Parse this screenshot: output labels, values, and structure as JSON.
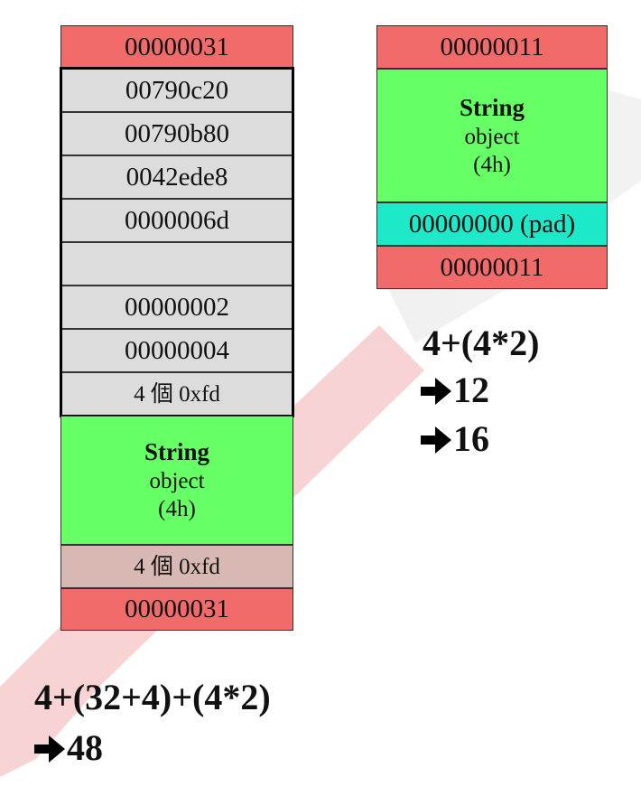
{
  "left_column": {
    "header": "00000031",
    "rows": [
      "00790c20",
      "00790b80",
      "0042ede8",
      "0000006d",
      "",
      "00000002",
      "00000004",
      "4 個 0xfd"
    ],
    "string_block": {
      "line1": "String",
      "line2": "object",
      "line3": "(4h)"
    },
    "trailer_pad": "4 個 0xfd",
    "footer": "00000031"
  },
  "right_column": {
    "header": "00000011",
    "string_block": {
      "line1": "String",
      "line2": "object",
      "line3": "(4h)"
    },
    "pad": "00000000 (pad)",
    "footer": "00000011"
  },
  "right_formula": {
    "expr": "4+(4*2)",
    "result1": "12",
    "result2": "16"
  },
  "left_formula": {
    "expr": "4+(32+4)+(4*2)",
    "result": "48"
  },
  "colors": {
    "header_red": "#f26b6b",
    "body_grey": "#dcdcdc",
    "string_green": "#66ff66",
    "pad_cyan": "#1de9c8"
  }
}
